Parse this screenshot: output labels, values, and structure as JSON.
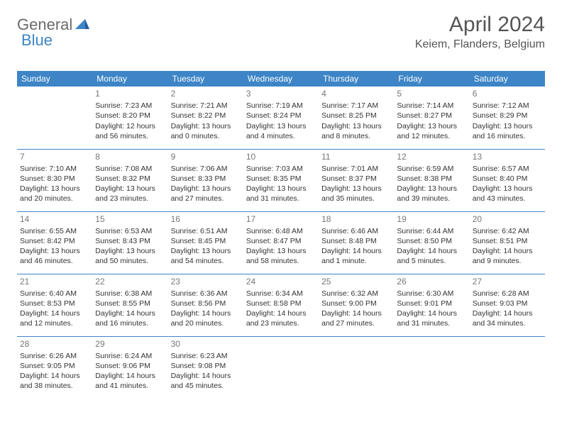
{
  "logo": {
    "general": "General",
    "blue": "Blue"
  },
  "title": "April 2024",
  "location": "Keiem, Flanders, Belgium",
  "headers": [
    "Sunday",
    "Monday",
    "Tuesday",
    "Wednesday",
    "Thursday",
    "Friday",
    "Saturday"
  ],
  "colors": {
    "accent": "#3d85c6",
    "header_text": "#ffffff",
    "body_text": "#333333",
    "daynum": "#777777",
    "title_text": "#555555",
    "logo_gray": "#6a6a6a",
    "background": "#ffffff"
  },
  "font": {
    "family": "Arial",
    "header_size": 12,
    "cell_size": 10.5,
    "title_size": 30,
    "location_size": 16
  },
  "weeks": [
    [
      null,
      {
        "n": "1",
        "sr": "Sunrise: 7:23 AM",
        "ss": "Sunset: 8:20 PM",
        "d1": "Daylight: 12 hours",
        "d2": "and 56 minutes."
      },
      {
        "n": "2",
        "sr": "Sunrise: 7:21 AM",
        "ss": "Sunset: 8:22 PM",
        "d1": "Daylight: 13 hours",
        "d2": "and 0 minutes."
      },
      {
        "n": "3",
        "sr": "Sunrise: 7:19 AM",
        "ss": "Sunset: 8:24 PM",
        "d1": "Daylight: 13 hours",
        "d2": "and 4 minutes."
      },
      {
        "n": "4",
        "sr": "Sunrise: 7:17 AM",
        "ss": "Sunset: 8:25 PM",
        "d1": "Daylight: 13 hours",
        "d2": "and 8 minutes."
      },
      {
        "n": "5",
        "sr": "Sunrise: 7:14 AM",
        "ss": "Sunset: 8:27 PM",
        "d1": "Daylight: 13 hours",
        "d2": "and 12 minutes."
      },
      {
        "n": "6",
        "sr": "Sunrise: 7:12 AM",
        "ss": "Sunset: 8:29 PM",
        "d1": "Daylight: 13 hours",
        "d2": "and 16 minutes."
      }
    ],
    [
      {
        "n": "7",
        "sr": "Sunrise: 7:10 AM",
        "ss": "Sunset: 8:30 PM",
        "d1": "Daylight: 13 hours",
        "d2": "and 20 minutes."
      },
      {
        "n": "8",
        "sr": "Sunrise: 7:08 AM",
        "ss": "Sunset: 8:32 PM",
        "d1": "Daylight: 13 hours",
        "d2": "and 23 minutes."
      },
      {
        "n": "9",
        "sr": "Sunrise: 7:06 AM",
        "ss": "Sunset: 8:33 PM",
        "d1": "Daylight: 13 hours",
        "d2": "and 27 minutes."
      },
      {
        "n": "10",
        "sr": "Sunrise: 7:03 AM",
        "ss": "Sunset: 8:35 PM",
        "d1": "Daylight: 13 hours",
        "d2": "and 31 minutes."
      },
      {
        "n": "11",
        "sr": "Sunrise: 7:01 AM",
        "ss": "Sunset: 8:37 PM",
        "d1": "Daylight: 13 hours",
        "d2": "and 35 minutes."
      },
      {
        "n": "12",
        "sr": "Sunrise: 6:59 AM",
        "ss": "Sunset: 8:38 PM",
        "d1": "Daylight: 13 hours",
        "d2": "and 39 minutes."
      },
      {
        "n": "13",
        "sr": "Sunrise: 6:57 AM",
        "ss": "Sunset: 8:40 PM",
        "d1": "Daylight: 13 hours",
        "d2": "and 43 minutes."
      }
    ],
    [
      {
        "n": "14",
        "sr": "Sunrise: 6:55 AM",
        "ss": "Sunset: 8:42 PM",
        "d1": "Daylight: 13 hours",
        "d2": "and 46 minutes."
      },
      {
        "n": "15",
        "sr": "Sunrise: 6:53 AM",
        "ss": "Sunset: 8:43 PM",
        "d1": "Daylight: 13 hours",
        "d2": "and 50 minutes."
      },
      {
        "n": "16",
        "sr": "Sunrise: 6:51 AM",
        "ss": "Sunset: 8:45 PM",
        "d1": "Daylight: 13 hours",
        "d2": "and 54 minutes."
      },
      {
        "n": "17",
        "sr": "Sunrise: 6:48 AM",
        "ss": "Sunset: 8:47 PM",
        "d1": "Daylight: 13 hours",
        "d2": "and 58 minutes."
      },
      {
        "n": "18",
        "sr": "Sunrise: 6:46 AM",
        "ss": "Sunset: 8:48 PM",
        "d1": "Daylight: 14 hours",
        "d2": "and 1 minute."
      },
      {
        "n": "19",
        "sr": "Sunrise: 6:44 AM",
        "ss": "Sunset: 8:50 PM",
        "d1": "Daylight: 14 hours",
        "d2": "and 5 minutes."
      },
      {
        "n": "20",
        "sr": "Sunrise: 6:42 AM",
        "ss": "Sunset: 8:51 PM",
        "d1": "Daylight: 14 hours",
        "d2": "and 9 minutes."
      }
    ],
    [
      {
        "n": "21",
        "sr": "Sunrise: 6:40 AM",
        "ss": "Sunset: 8:53 PM",
        "d1": "Daylight: 14 hours",
        "d2": "and 12 minutes."
      },
      {
        "n": "22",
        "sr": "Sunrise: 6:38 AM",
        "ss": "Sunset: 8:55 PM",
        "d1": "Daylight: 14 hours",
        "d2": "and 16 minutes."
      },
      {
        "n": "23",
        "sr": "Sunrise: 6:36 AM",
        "ss": "Sunset: 8:56 PM",
        "d1": "Daylight: 14 hours",
        "d2": "and 20 minutes."
      },
      {
        "n": "24",
        "sr": "Sunrise: 6:34 AM",
        "ss": "Sunset: 8:58 PM",
        "d1": "Daylight: 14 hours",
        "d2": "and 23 minutes."
      },
      {
        "n": "25",
        "sr": "Sunrise: 6:32 AM",
        "ss": "Sunset: 9:00 PM",
        "d1": "Daylight: 14 hours",
        "d2": "and 27 minutes."
      },
      {
        "n": "26",
        "sr": "Sunrise: 6:30 AM",
        "ss": "Sunset: 9:01 PM",
        "d1": "Daylight: 14 hours",
        "d2": "and 31 minutes."
      },
      {
        "n": "27",
        "sr": "Sunrise: 6:28 AM",
        "ss": "Sunset: 9:03 PM",
        "d1": "Daylight: 14 hours",
        "d2": "and 34 minutes."
      }
    ],
    [
      {
        "n": "28",
        "sr": "Sunrise: 6:26 AM",
        "ss": "Sunset: 9:05 PM",
        "d1": "Daylight: 14 hours",
        "d2": "and 38 minutes."
      },
      {
        "n": "29",
        "sr": "Sunrise: 6:24 AM",
        "ss": "Sunset: 9:06 PM",
        "d1": "Daylight: 14 hours",
        "d2": "and 41 minutes."
      },
      {
        "n": "30",
        "sr": "Sunrise: 6:23 AM",
        "ss": "Sunset: 9:08 PM",
        "d1": "Daylight: 14 hours",
        "d2": "and 45 minutes."
      },
      null,
      null,
      null,
      null
    ]
  ]
}
